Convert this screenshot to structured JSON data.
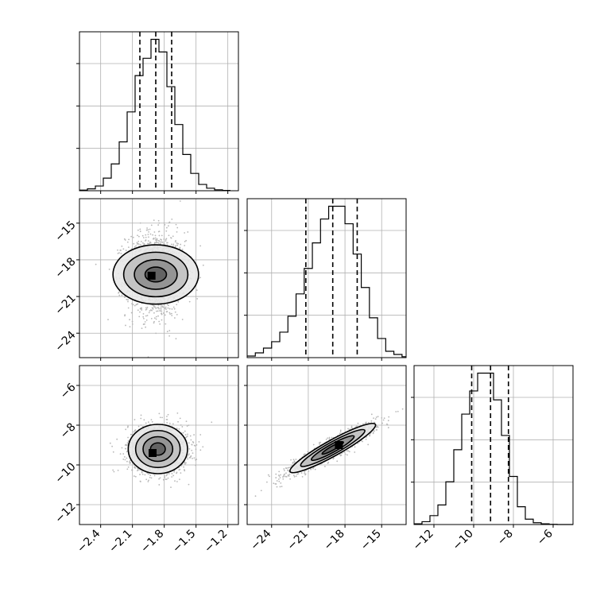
{
  "chart_data": {
    "type": "corner",
    "params": [
      {
        "xlim": [
          -2.6,
          -1.1
        ],
        "ticks": [
          -2.4,
          -2.1,
          -1.8,
          -1.5,
          -1.2
        ],
        "tick_labels": [
          "−2.4",
          "−2.1",
          "−1.8",
          "−1.5",
          "−1.2"
        ]
      },
      {
        "xlim": [
          -26.0,
          -13.0
        ],
        "ticks": [
          -24,
          -21,
          -18,
          -15
        ],
        "tick_labels": [
          "−24",
          "−21",
          "−18",
          "−15"
        ]
      },
      {
        "xlim": [
          -13.0,
          -5.0
        ],
        "ticks": [
          -12,
          -10,
          -8,
          -6
        ],
        "tick_labels": [
          "−12",
          "−10",
          "−8",
          "−6"
        ]
      }
    ],
    "diagonal": [
      {
        "param": 0,
        "quantiles": [
          -2.03,
          -1.88,
          -1.73
        ],
        "bin_edges": [
          -2.6,
          -2.525,
          -2.45,
          -2.375,
          -2.3,
          -2.225,
          -2.15,
          -2.075,
          -2.0,
          -1.925,
          -1.85,
          -1.775,
          -1.7,
          -1.625,
          -1.55,
          -1.475,
          -1.4,
          -1.325,
          -1.25,
          -1.175
        ],
        "counts": [
          0.2,
          0.6,
          1.5,
          4.0,
          8.5,
          15.5,
          25.0,
          36.5,
          42.0,
          48.0,
          44.0,
          33.0,
          21.0,
          11.5,
          5.5,
          2.0,
          0.8,
          0.3,
          0.1
        ]
      },
      {
        "param": 1,
        "quantiles": [
          -21.2,
          -19.0,
          -17.0
        ],
        "bin_edges": [
          -26.0,
          -25.333,
          -24.667,
          -24.0,
          -23.333,
          -22.667,
          -22.0,
          -21.333,
          -20.667,
          -20.0,
          -19.333,
          -18.667,
          -18.0,
          -17.333,
          -16.667,
          -16.0,
          -15.333,
          -14.667,
          -14.0,
          -13.333,
          -13.0
        ],
        "counts": [
          0.5,
          1.5,
          3.0,
          5.0,
          8.0,
          13.0,
          20.0,
          28.0,
          36.0,
          43.5,
          47.5,
          47.5,
          42.0,
          32.5,
          22.0,
          12.5,
          6.0,
          2.0,
          1.0,
          0.3
        ]
      },
      {
        "param": 2,
        "quantiles": [
          -10.1,
          -9.15,
          -8.25
        ],
        "bin_edges": [
          -13.0,
          -12.6,
          -12.2,
          -11.8,
          -11.4,
          -11.0,
          -10.6,
          -10.2,
          -9.8,
          -9.4,
          -9.0,
          -8.6,
          -8.2,
          -7.8,
          -7.4,
          -7.0,
          -6.6,
          -6.2,
          -5.8,
          -5.4,
          -5.0
        ],
        "counts": [
          0.2,
          0.8,
          2.5,
          5.5,
          12.0,
          21.0,
          31.0,
          37.5,
          42.5,
          42.5,
          35.0,
          25.0,
          13.5,
          5.0,
          1.5,
          0.5,
          0.2,
          0.05,
          0.0,
          0.0
        ]
      }
    ],
    "scatter": [
      {
        "row": 1,
        "col": 0,
        "x_param": 0,
        "y_param": 1,
        "center": [
          -1.88,
          -19.2
        ],
        "sd": [
          0.14,
          1.75
        ],
        "rho": 0.0,
        "n_points": 1400,
        "peak_point": [
          -1.92,
          -19.3
        ]
      },
      {
        "row": 2,
        "col": 0,
        "x_param": 0,
        "y_param": 2,
        "center": [
          -1.86,
          -9.2
        ],
        "sd": [
          0.14,
          0.62
        ],
        "rho": 0.0,
        "n_points": 1400,
        "peak_point": [
          -1.91,
          -9.4
        ]
      },
      {
        "row": 2,
        "col": 1,
        "x_param": 1,
        "y_param": 2,
        "center": [
          -19.0,
          -9.15
        ],
        "sd": [
          1.75,
          0.62
        ],
        "rho": 0.93,
        "n_points": 1400,
        "peak_point": [
          -18.5,
          -9.0
        ]
      }
    ],
    "contour_levels_sigma": [
      0.5,
      1.0,
      1.5,
      2.0
    ],
    "grid": true,
    "colors": {
      "line": "#000000",
      "scatter": "#b8b8b8",
      "grid": "#b0b0b0"
    }
  }
}
